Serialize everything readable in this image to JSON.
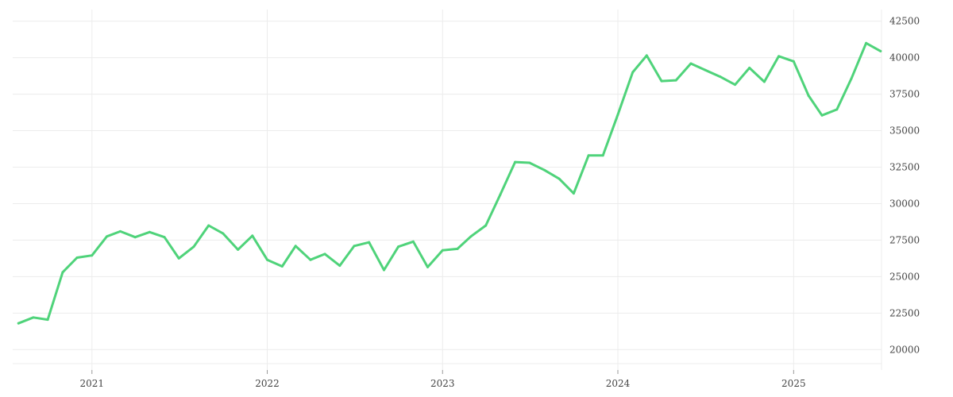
{
  "chart_data": {
    "type": "line",
    "title": "",
    "xlabel": "",
    "ylabel": "",
    "grid": true,
    "y_axis_side": "right",
    "xlim": [
      "2020-07-20",
      "2025-07-03"
    ],
    "ylim": [
      18600,
      43300
    ],
    "x_ticks": [
      "2021",
      "2022",
      "2023",
      "2024",
      "2025"
    ],
    "y_ticks": [
      20000,
      22500,
      25000,
      27500,
      30000,
      32500,
      35000,
      37500,
      40000,
      42500
    ],
    "y_tick_labels": [
      "20000",
      "22500",
      "25000",
      "27500",
      "30000",
      "32500",
      "35000",
      "37500",
      "40000",
      "42500"
    ],
    "series": [
      {
        "color": "#4fd37a",
        "x": [
          "2020-08-01",
          "2020-09-01",
          "2020-10-01",
          "2020-11-01",
          "2020-12-01",
          "2021-01-01",
          "2021-02-01",
          "2021-03-01",
          "2021-04-01",
          "2021-05-01",
          "2021-06-01",
          "2021-07-01",
          "2021-08-01",
          "2021-09-01",
          "2021-10-01",
          "2021-11-01",
          "2021-12-01",
          "2022-01-01",
          "2022-02-01",
          "2022-03-01",
          "2022-04-01",
          "2022-05-01",
          "2022-06-01",
          "2022-07-01",
          "2022-08-01",
          "2022-09-01",
          "2022-10-01",
          "2022-11-01",
          "2022-12-01",
          "2023-01-01",
          "2023-02-01",
          "2023-03-01",
          "2023-04-01",
          "2023-05-01",
          "2023-06-01",
          "2023-07-01",
          "2023-08-01",
          "2023-09-01",
          "2023-10-01",
          "2023-11-01",
          "2023-12-01",
          "2024-01-01",
          "2024-02-01",
          "2024-03-01",
          "2024-04-01",
          "2024-05-01",
          "2024-06-01",
          "2024-07-01",
          "2024-08-01",
          "2024-09-01",
          "2024-10-01",
          "2024-11-01",
          "2024-12-01",
          "2025-01-01",
          "2025-02-01",
          "2025-03-01",
          "2025-04-01",
          "2025-05-01",
          "2025-06-01",
          "2025-07-01"
        ],
        "values": [
          21800,
          22200,
          22050,
          25300,
          26300,
          26450,
          27750,
          28100,
          27700,
          28050,
          27700,
          26250,
          27050,
          28500,
          27950,
          26850,
          27800,
          26150,
          25700,
          27100,
          26150,
          26550,
          25750,
          27100,
          27350,
          25450,
          27050,
          27400,
          25650,
          26800,
          26900,
          27750,
          28500,
          30600,
          32850,
          32800,
          32300,
          31700,
          30700,
          33300,
          33300,
          36100,
          39000,
          40150,
          38400,
          38450,
          39600,
          39150,
          38700,
          38150,
          39300,
          38350,
          40100,
          39750,
          37400,
          36050,
          36450,
          38550,
          41000,
          40450
        ]
      }
    ]
  }
}
